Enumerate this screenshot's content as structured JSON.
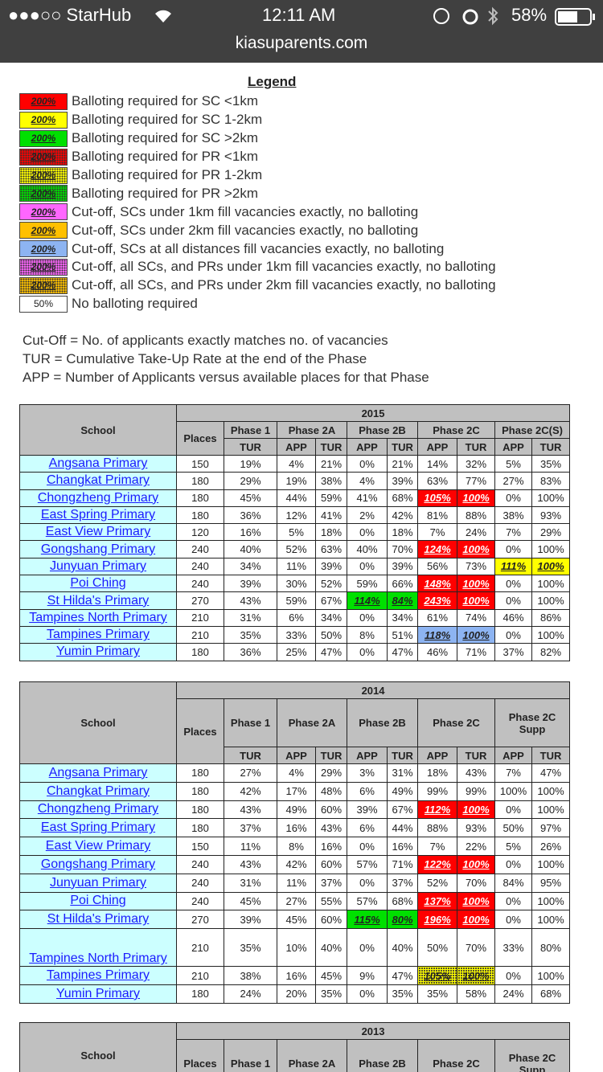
{
  "status_bar": {
    "carrier": "●●●○○ StarHub",
    "time": "12:11 AM",
    "battery": "58%"
  },
  "url": "kiasuparents.com",
  "legend": {
    "title": "Legend",
    "items": [
      {
        "sample": "200%",
        "color": "#ff0000",
        "dotted": false,
        "text": "Balloting required for SC <1km"
      },
      {
        "sample": "200%",
        "color": "#ffff00",
        "dotted": false,
        "text": "Balloting required for SC 1-2km"
      },
      {
        "sample": "200%",
        "color": "#00e000",
        "dotted": false,
        "text": "Balloting required for SC >2km"
      },
      {
        "sample": "200%",
        "color": "#ff0000",
        "dotted": true,
        "text": "Balloting required for PR <1km"
      },
      {
        "sample": "200%",
        "color": "#ffff00",
        "dotted": true,
        "text": "Balloting required for PR 1-2km"
      },
      {
        "sample": "200%",
        "color": "#00e000",
        "dotted": true,
        "text": "Balloting required for PR >2km"
      },
      {
        "sample": "200%",
        "color": "#ff66ff",
        "dotted": false,
        "text": "Cut-off, SCs under 1km fill vacancies exactly, no balloting"
      },
      {
        "sample": "200%",
        "color": "#ffc000",
        "dotted": false,
        "text": "Cut-off, SCs under 2km fill vacancies exactly, no balloting"
      },
      {
        "sample": "200%",
        "color": "#8db4f2",
        "dotted": false,
        "text": "Cut-off, SCs at all distances fill vacancies exactly, no balloting"
      },
      {
        "sample": "200%",
        "color": "#ff66ff",
        "dotted": true,
        "text": "Cut-off, all SCs, and PRs under 1km fill vacancies exactly, no balloting"
      },
      {
        "sample": "200%",
        "color": "#ffc000",
        "dotted": true,
        "text": "Cut-off, all SCs, and PRs under 2km fill vacancies exactly, no balloting"
      },
      {
        "sample": "50%",
        "color": "#ffffff",
        "dotted": false,
        "text": "No balloting required"
      }
    ]
  },
  "notes": [
    "Cut-Off = No. of applicants exactly matches no. of vacancies",
    "TUR = Cumulative Take-Up Rate at the end of the Phase",
    "APP = Number of Applicants versus available places for that Phase"
  ],
  "tables": [
    {
      "year": "2015",
      "school_header": "School",
      "places_header": "Places",
      "phases": [
        "Phase 1",
        "Phase 2A",
        "Phase 2B",
        "Phase 2C",
        "Phase 2C(S)"
      ],
      "subheaders": [
        "TUR",
        "APP",
        "TUR",
        "APP",
        "TUR",
        "APP",
        "TUR",
        "APP",
        "TUR"
      ],
      "rows": [
        {
          "school": "Angsana Primary",
          "cells": [
            "150",
            "19%",
            "4%",
            "21%",
            "0%",
            "21%",
            "14%",
            "32%",
            "5%",
            "35%"
          ]
        },
        {
          "school": "Changkat Primary",
          "cells": [
            "180",
            "29%",
            "19%",
            "38%",
            "4%",
            "39%",
            "63%",
            "77%",
            "27%",
            "83%"
          ]
        },
        {
          "school": "Chongzheng Primary",
          "cells": [
            "180",
            "45%",
            "44%",
            "59%",
            "41%",
            "68%",
            {
              "text": "105%",
              "color": "#ff0000"
            },
            {
              "text": "100%",
              "color": "#ff0000"
            },
            "0%",
            "100%"
          ]
        },
        {
          "school": "East Spring Primary",
          "cells": [
            "180",
            "36%",
            "12%",
            "41%",
            "2%",
            "42%",
            "81%",
            "88%",
            "38%",
            "93%"
          ]
        },
        {
          "school": "East View Primary",
          "cells": [
            "120",
            "16%",
            "5%",
            "18%",
            "0%",
            "18%",
            "7%",
            "24%",
            "7%",
            "29%"
          ]
        },
        {
          "school": "Gongshang Primary",
          "cells": [
            "240",
            "40%",
            "52%",
            "63%",
            "40%",
            "70%",
            {
              "text": "124%",
              "color": "#ff0000"
            },
            {
              "text": "100%",
              "color": "#ff0000"
            },
            "0%",
            "100%"
          ]
        },
        {
          "school": "Junyuan Primary",
          "cells": [
            "240",
            "34%",
            "11%",
            "39%",
            "0%",
            "39%",
            "56%",
            "73%",
            {
              "text": "111%",
              "color": "#ffff00"
            },
            {
              "text": "100%",
              "color": "#ffff00"
            }
          ]
        },
        {
          "school": "Poi Ching",
          "cells": [
            "240",
            "39%",
            "30%",
            "52%",
            "59%",
            "66%",
            {
              "text": "148%",
              "color": "#ff0000"
            },
            {
              "text": "100%",
              "color": "#ff0000"
            },
            "0%",
            "100%"
          ]
        },
        {
          "school": "St Hilda's Primary",
          "cells": [
            "270",
            "43%",
            "59%",
            "67%",
            {
              "text": "114%",
              "color": "#00e000"
            },
            {
              "text": "84%",
              "color": "#00e000"
            },
            {
              "text": "243%",
              "color": "#ff0000"
            },
            {
              "text": "100%",
              "color": "#ff0000"
            },
            "0%",
            "100%"
          ]
        },
        {
          "school": "Tampines North Primary",
          "cells": [
            "210",
            "31%",
            "6%",
            "34%",
            "0%",
            "34%",
            "61%",
            "74%",
            "46%",
            "86%"
          ]
        },
        {
          "school": "Tampines Primary",
          "cells": [
            "210",
            "35%",
            "33%",
            "50%",
            "8%",
            "51%",
            {
              "text": "118%",
              "color": "#8db4f2"
            },
            {
              "text": "100%",
              "color": "#8db4f2"
            },
            "0%",
            "100%"
          ]
        },
        {
          "school": "Yumin Primary",
          "cells": [
            "180",
            "36%",
            "25%",
            "47%",
            "0%",
            "47%",
            "46%",
            "71%",
            "37%",
            "82%"
          ]
        }
      ]
    },
    {
      "year": "2014",
      "school_header": "School",
      "places_header": "Places",
      "phases": [
        "Phase 1",
        "Phase 2A",
        "Phase 2B",
        "Phase 2C",
        "Phase 2C Supp"
      ],
      "subheaders": [
        "TUR",
        "APP",
        "TUR",
        "APP",
        "TUR",
        "APP",
        "TUR",
        "APP",
        "TUR"
      ],
      "rows": [
        {
          "school": "Angsana Primary",
          "cells": [
            "180",
            "27%",
            "4%",
            "29%",
            "3%",
            "31%",
            "18%",
            "43%",
            "7%",
            "47%"
          ]
        },
        {
          "school": "Changkat Primary",
          "cells": [
            "180",
            "42%",
            "17%",
            "48%",
            "6%",
            "49%",
            "99%",
            "99%",
            "100%",
            "100%"
          ]
        },
        {
          "school": "Chongzheng Primary",
          "cells": [
            "180",
            "43%",
            "49%",
            "60%",
            "39%",
            "67%",
            {
              "text": "112%",
              "color": "#ff0000"
            },
            {
              "text": "100%",
              "color": "#ff0000"
            },
            "0%",
            "100%"
          ]
        },
        {
          "school": "East Spring Primary",
          "cells": [
            "180",
            "37%",
            "16%",
            "43%",
            "6%",
            "44%",
            "88%",
            "93%",
            "50%",
            "97%"
          ]
        },
        {
          "school": "East View Primary",
          "cells": [
            "150",
            "11%",
            "8%",
            "16%",
            "0%",
            "16%",
            "7%",
            "22%",
            "5%",
            "26%"
          ]
        },
        {
          "school": "Gongshang Primary",
          "cells": [
            "240",
            "43%",
            "42%",
            "60%",
            "57%",
            "71%",
            {
              "text": "122%",
              "color": "#ff0000"
            },
            {
              "text": "100%",
              "color": "#ff0000"
            },
            "0%",
            "100%"
          ]
        },
        {
          "school": "Junyuan Primary",
          "cells": [
            "240",
            "31%",
            "11%",
            "37%",
            "0%",
            "37%",
            "52%",
            "70%",
            "84%",
            "95%"
          ]
        },
        {
          "school": "Poi Ching",
          "cells": [
            "240",
            "45%",
            "27%",
            "55%",
            "57%",
            "68%",
            {
              "text": "137%",
              "color": "#ff0000"
            },
            {
              "text": "100%",
              "color": "#ff0000"
            },
            "0%",
            "100%"
          ]
        },
        {
          "school": "St Hilda's Primary",
          "cells": [
            "270",
            "39%",
            "45%",
            "60%",
            {
              "text": "115%",
              "color": "#00e000"
            },
            {
              "text": "80%",
              "color": "#00e000"
            },
            {
              "text": "196%",
              "color": "#ff0000"
            },
            {
              "text": "100%",
              "color": "#ff0000"
            },
            "0%",
            "100%"
          ]
        },
        {
          "school": "Tampines North Primary",
          "cells": [
            "210",
            "35%",
            "10%",
            "40%",
            "0%",
            "40%",
            "50%",
            "70%",
            "33%",
            "80%"
          ]
        },
        {
          "school": "Tampines Primary",
          "cells": [
            "210",
            "38%",
            "16%",
            "45%",
            "9%",
            "47%",
            {
              "text": "105%",
              "color": "#ffff00",
              "dotted": true
            },
            {
              "text": "100%",
              "color": "#ffff00",
              "dotted": true
            },
            "0%",
            "100%"
          ]
        },
        {
          "school": "Yumin Primary",
          "cells": [
            "180",
            "24%",
            "20%",
            "35%",
            "0%",
            "35%",
            "35%",
            "58%",
            "24%",
            "68%"
          ]
        }
      ]
    },
    {
      "year": "2013",
      "school_header": "School",
      "places_header": "Places",
      "phases": [
        "Phase 1",
        "Phase 2A",
        "Phase 2B",
        "Phase 2C",
        "Phase 2C Supp"
      ]
    }
  ]
}
